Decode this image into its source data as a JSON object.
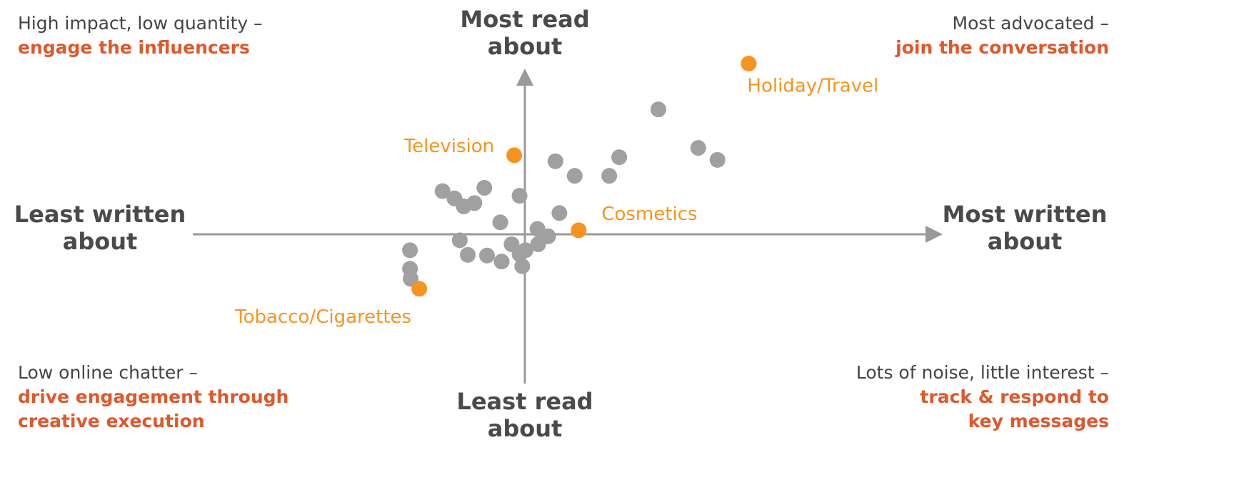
{
  "chart_data": {
    "type": "scatter",
    "axis_labels": {
      "top": "Most read about",
      "bottom": "Least read about",
      "left": "Least written about",
      "right": "Most written about"
    },
    "quadrants": [
      {
        "lead": "High impact, low quantity –",
        "action": "engage the influencers"
      },
      {
        "lead": "Most advocated –",
        "action": "join the conversation"
      },
      {
        "lead": "Low online chatter –",
        "action": "drive engagement through creative execution"
      },
      {
        "lead": "Lots of noise, little interest –",
        "action": "track & respond to key messages"
      }
    ],
    "xlim": [
      -50,
      50
    ],
    "ylim": [
      -25,
      25
    ],
    "color": "#a0a0a0",
    "x": [
      20.1,
      26.1,
      29.0,
      14.2,
      12.7,
      4.6,
      7.5,
      -0.8,
      -6.1,
      -12.4,
      -10.6,
      -9.2,
      -7.6,
      5.2,
      -3.7,
      1.9,
      3.5,
      2.0,
      -9.8,
      -2.0,
      0.1,
      -0.8,
      -8.6,
      -5.7,
      -3.5,
      -0.4,
      -17.3,
      -17.3,
      -17.2
    ],
    "y": [
      18.8,
      13.0,
      11.2,
      11.6,
      8.8,
      11.0,
      8.8,
      5.8,
      7.0,
      6.5,
      5.4,
      4.2,
      4.7,
      3.2,
      1.8,
      0.8,
      -0.3,
      -1.5,
      -0.9,
      -1.5,
      -2.4,
      -3.0,
      -3.1,
      -3.2,
      -4.1,
      -4.8,
      -2.4,
      -5.2,
      -6.7
    ],
    "highlights": {
      "color": "#f7941d",
      "labels": [
        "Holiday/Travel",
        "Television",
        "Cosmetics",
        "Tobacco/Cigarettes"
      ],
      "x": [
        33.7,
        -1.6,
        8.1,
        -15.9
      ],
      "y": [
        25.7,
        11.9,
        0.6,
        -8.2
      ]
    }
  }
}
